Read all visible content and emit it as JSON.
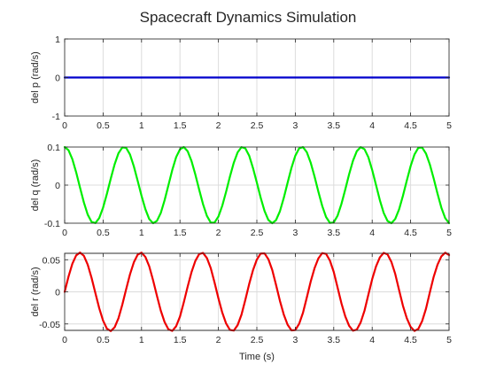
{
  "figure": {
    "title": "Spacecraft Dynamics Simulation"
  },
  "chart_data": [
    {
      "type": "line",
      "title": "",
      "xlabel": "",
      "ylabel": "del p (rad/s)",
      "xlim": [
        0,
        5
      ],
      "ylim": [
        -1,
        1
      ],
      "xticks": [
        0,
        0.5,
        1,
        1.5,
        2,
        2.5,
        3,
        3.5,
        4,
        4.5,
        5
      ],
      "xticklabels": [
        "0",
        "0.5",
        "1",
        "1.5",
        "2",
        "2.5",
        "3",
        "3.5",
        "4",
        "4.5",
        "5"
      ],
      "yticks": [
        -1,
        0,
        1
      ],
      "yticklabels": [
        "-1",
        "0",
        "1"
      ],
      "grid": true,
      "series": [
        {
          "color": "#0000cc",
          "x": [
            0,
            0.5,
            1,
            1.5,
            2,
            2.5,
            3,
            3.5,
            4,
            4.5,
            5
          ],
          "y": [
            0,
            0,
            0,
            0,
            0,
            0,
            0,
            0,
            0,
            0,
            0
          ]
        }
      ]
    },
    {
      "type": "line",
      "title": "",
      "xlabel": "",
      "ylabel": "del q (rad/s)",
      "xlim": [
        0,
        5
      ],
      "ylim": [
        -0.1,
        0.1
      ],
      "xticks": [
        0,
        0.5,
        1,
        1.5,
        2,
        2.5,
        3,
        3.5,
        4,
        4.5,
        5
      ],
      "xticklabels": [
        "0",
        "0.5",
        "1",
        "1.5",
        "2",
        "2.5",
        "3",
        "3.5",
        "4",
        "4.5",
        "5"
      ],
      "yticks": [
        -0.1,
        0,
        0.1
      ],
      "yticklabels": [
        "-0.1",
        "0",
        "0.1"
      ],
      "grid": true,
      "series": [
        {
          "color": "#00ee00",
          "x": [
            0,
            0.05,
            0.1,
            0.15,
            0.2,
            0.25,
            0.3,
            0.35,
            0.4,
            0.45,
            0.5,
            0.55,
            0.6,
            0.65,
            0.7,
            0.75,
            0.8,
            0.85,
            0.9,
            0.95,
            1,
            1.05,
            1.1,
            1.15,
            1.2,
            1.25,
            1.3,
            1.35,
            1.4,
            1.45,
            1.5,
            1.55,
            1.6,
            1.65,
            1.7,
            1.75,
            1.8,
            1.85,
            1.9,
            1.95,
            2,
            2.05,
            2.1,
            2.15,
            2.2,
            2.25,
            2.3,
            2.35,
            2.4,
            2.45,
            2.5,
            2.55,
            2.6,
            2.65,
            2.7,
            2.75,
            2.8,
            2.85,
            2.9,
            2.95,
            3,
            3.05,
            3.1,
            3.15,
            3.2,
            3.25,
            3.3,
            3.35,
            3.4,
            3.45,
            3.5,
            3.55,
            3.6,
            3.65,
            3.7,
            3.75,
            3.8,
            3.85,
            3.9,
            3.95,
            4,
            4.05,
            4.1,
            4.15,
            4.2,
            4.25,
            4.3,
            4.35,
            4.4,
            4.45,
            4.5,
            4.55,
            4.6,
            4.65,
            4.7,
            4.75,
            4.8,
            4.85,
            4.9,
            4.95,
            5
          ],
          "y": [
            0.1,
            0.0917,
            0.0682,
            0.0334,
            -0.0067,
            -0.0455,
            -0.0775,
            -0.0966,
            -0.0996,
            -0.0863,
            -0.0589,
            -0.0225,
            0.0173,
            0.0546,
            0.0838,
            0.099,
            0.0978,
            0.0803,
            0.0492,
            0.011,
            -0.0281,
            -0.0632,
            -0.0891,
            -0.1,
            -0.094,
            -0.0733,
            -0.0397,
            0.0001,
            0.0399,
            0.0734,
            0.094,
            0.1,
            0.0889,
            0.0632,
            0.0277,
            -0.0121,
            -0.0502,
            -0.0807,
            -0.0984,
            -0.0981,
            -0.0826,
            -0.0542,
            -0.0174,
            0.0225,
            0.0588,
            0.086,
            0.0997,
            0.0966,
            0.0774,
            0.0447,
            0.0065,
            -0.0333,
            -0.0679,
            -0.0916,
            -0.1,
            -0.0918,
            -0.0686,
            -0.0337,
            0.0062,
            0.0452,
            0.0771,
            0.0965,
            0.0998,
            0.0863,
            0.0591,
            0.0228,
            -0.0171,
            -0.0545,
            -0.0837,
            -0.0992,
            -0.0979,
            -0.0802,
            -0.0496,
            -0.0115,
            0.0285,
            0.0638,
            0.0891,
            0.0997,
            0.0943,
            0.0734,
            0.0398,
            0.0002,
            -0.0396,
            -0.0731,
            -0.0942,
            -0.1,
            -0.0888,
            -0.0637,
            -0.0281,
            0.0117,
            0.0499,
            0.0804,
            0.0978,
            0.0987,
            0.0829,
            0.0542,
            0.0174,
            -0.0224,
            -0.0592,
            -0.0866,
            -0.1
          ]
        }
      ]
    },
    {
      "type": "line",
      "title": "",
      "xlabel": "Time (s)",
      "ylabel": "del r (rad/s)",
      "xlim": [
        0,
        5
      ],
      "ylim": [
        -0.06,
        0.06
      ],
      "xticks": [
        0,
        0.5,
        1,
        1.5,
        2,
        2.5,
        3,
        3.5,
        4,
        4.5,
        5
      ],
      "xticklabels": [
        "0",
        "0.5",
        "1",
        "1.5",
        "2",
        "2.5",
        "3",
        "3.5",
        "4",
        "4.5",
        "5"
      ],
      "yticks": [
        -0.05,
        0,
        0.05
      ],
      "yticklabels": [
        "-0.05",
        "0",
        "0.05"
      ],
      "grid": true,
      "series": [
        {
          "color": "#ee0000",
          "x": [
            0,
            0.05,
            0.1,
            0.15,
            0.2,
            0.25,
            0.3,
            0.35,
            0.4,
            0.45,
            0.5,
            0.55,
            0.6,
            0.65,
            0.7,
            0.75,
            0.8,
            0.85,
            0.9,
            0.95,
            1,
            1.05,
            1.1,
            1.15,
            1.2,
            1.25,
            1.3,
            1.35,
            1.4,
            1.45,
            1.5,
            1.55,
            1.6,
            1.65,
            1.7,
            1.75,
            1.8,
            1.85,
            1.9,
            1.95,
            2,
            2.05,
            2.1,
            2.15,
            2.2,
            2.25,
            2.3,
            2.35,
            2.4,
            2.45,
            2.5,
            2.55,
            2.6,
            2.65,
            2.7,
            2.75,
            2.8,
            2.85,
            2.9,
            2.95,
            3,
            3.05,
            3.1,
            3.15,
            3.2,
            3.25,
            3.3,
            3.35,
            3.4,
            3.45,
            3.5,
            3.55,
            3.6,
            3.65,
            3.7,
            3.75,
            3.8,
            3.85,
            3.9,
            3.95,
            4,
            4.05,
            4.1,
            4.15,
            4.2,
            4.25,
            4.3,
            4.35,
            4.4,
            4.45,
            4.5,
            4.55,
            4.6,
            4.65,
            4.7,
            4.75,
            4.8,
            4.85,
            4.9,
            4.95,
            5
          ],
          "y": [
            0,
            0.0237,
            0.0437,
            0.0568,
            0.0612,
            0.0561,
            0.0423,
            0.0218,
            -0.0021,
            -0.0256,
            -0.0449,
            -0.0574,
            -0.0611,
            -0.0552,
            -0.0411,
            -0.0199,
            0.0041,
            0.0273,
            0.046,
            0.0579,
            0.061,
            0.0544,
            0.0398,
            0.0181,
            -0.0061,
            -0.0291,
            -0.0471,
            -0.0584,
            -0.0608,
            -0.0536,
            -0.0385,
            -0.0162,
            0.0081,
            0.0307,
            0.0482,
            0.0589,
            0.0606,
            0.0527,
            0.0371,
            0.0144,
            -0.0101,
            -0.0323,
            -0.0493,
            -0.0594,
            -0.0603,
            -0.0518,
            -0.0356,
            -0.0125,
            0.0121,
            0.0338,
            0.0503,
            0.0597,
            0.0599,
            0.0508,
            0.0341,
            0.0106,
            -0.014,
            -0.0353,
            -0.0512,
            -0.06,
            -0.0596,
            -0.0498,
            -0.0326,
            -0.0087,
            0.0159,
            0.0367,
            0.0521,
            0.0603,
            0.0592,
            0.0488,
            0.031,
            0.0067,
            -0.0178,
            -0.0382,
            -0.0529,
            -0.0605,
            -0.0588,
            -0.0477,
            -0.0294,
            -0.0047,
            0.0197,
            0.0396,
            0.0537,
            0.0607,
            0.0583,
            0.0466,
            0.0278,
            0.0028,
            -0.0216,
            -0.0409,
            -0.0545,
            -0.0608,
            -0.0578,
            -0.0455,
            -0.0262,
            -0.0009,
            0.0234,
            0.0423,
            0.0553,
            0.0609,
            0.0573
          ]
        }
      ]
    }
  ]
}
